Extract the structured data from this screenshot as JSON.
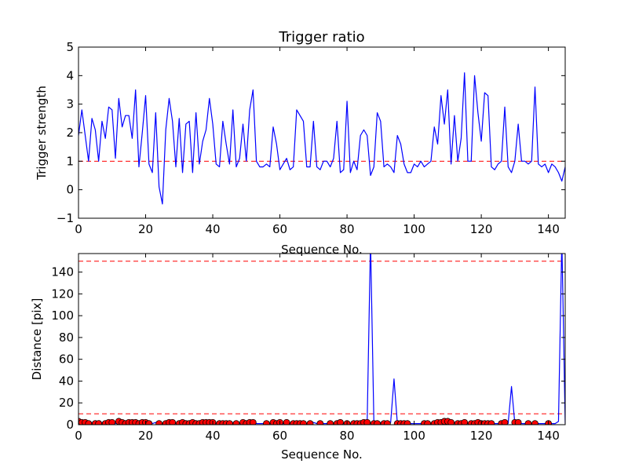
{
  "figure": {
    "title": "Trigger ratio"
  },
  "chart_data": [
    {
      "type": "line",
      "title": "Trigger ratio",
      "xlabel": "Sequence No.",
      "ylabel": "Trigger strength",
      "xlim": [
        0,
        145
      ],
      "ylim": [
        -1,
        5
      ],
      "xticks": [
        0,
        20,
        40,
        60,
        80,
        100,
        120,
        140
      ],
      "yticks": [
        -1,
        0,
        1,
        2,
        3,
        4,
        5
      ],
      "grid": false,
      "series": [
        {
          "color": "#0000ff",
          "x": [
            0,
            1,
            2,
            3,
            4,
            5,
            6,
            7,
            8,
            9,
            10,
            11,
            12,
            13,
            14,
            15,
            16,
            17,
            18,
            19,
            20,
            21,
            22,
            23,
            24,
            25,
            26,
            27,
            28,
            29,
            30,
            31,
            32,
            33,
            34,
            35,
            36,
            37,
            38,
            39,
            40,
            41,
            42,
            43,
            44,
            45,
            46,
            47,
            48,
            49,
            50,
            51,
            52,
            53,
            54,
            55,
            56,
            57,
            58,
            59,
            60,
            61,
            62,
            63,
            64,
            65,
            66,
            67,
            68,
            69,
            70,
            71,
            72,
            73,
            74,
            75,
            76,
            77,
            78,
            79,
            80,
            81,
            82,
            83,
            84,
            85,
            86,
            87,
            88,
            89,
            90,
            91,
            92,
            93,
            94,
            95,
            96,
            97,
            98,
            99,
            100,
            101,
            102,
            103,
            104,
            105,
            106,
            107,
            108,
            109,
            110,
            111,
            112,
            113,
            114,
            115,
            116,
            117,
            118,
            119,
            120,
            121,
            122,
            123,
            124,
            125,
            126,
            127,
            128,
            129,
            130,
            131,
            132,
            133,
            134,
            135,
            136,
            137,
            138,
            139,
            140,
            141,
            142,
            143,
            144,
            145
          ],
          "y": [
            1.9,
            2.8,
            1.9,
            1.0,
            2.5,
            2.1,
            1.0,
            2.4,
            1.8,
            2.9,
            2.8,
            1.1,
            3.2,
            2.2,
            2.6,
            2.6,
            1.8,
            3.5,
            0.8,
            2.0,
            3.3,
            0.9,
            0.6,
            2.7,
            0.1,
            -0.5,
            2.1,
            3.2,
            2.4,
            0.8,
            2.5,
            0.6,
            2.3,
            2.4,
            0.6,
            2.7,
            0.9,
            1.7,
            2.1,
            3.2,
            2.3,
            0.9,
            0.8,
            2.4,
            1.6,
            0.9,
            2.8,
            0.8,
            1.1,
            2.3,
            1.0,
            2.8,
            3.5,
            1.0,
            0.8,
            0.8,
            0.9,
            0.8,
            2.2,
            1.6,
            0.7,
            0.9,
            1.1,
            0.7,
            0.8,
            2.8,
            2.6,
            2.4,
            0.8,
            0.8,
            2.4,
            0.8,
            0.7,
            1.0,
            1.0,
            0.8,
            1.1,
            2.4,
            0.6,
            0.7,
            3.1,
            0.6,
            1.0,
            0.7,
            1.9,
            2.1,
            1.9,
            0.5,
            0.8,
            2.7,
            2.4,
            0.8,
            0.9,
            0.8,
            0.6,
            1.9,
            1.6,
            0.9,
            0.6,
            0.6,
            0.9,
            0.8,
            1.0,
            0.8,
            0.9,
            1.0,
            2.2,
            1.6,
            3.3,
            2.3,
            3.5,
            0.9,
            2.6,
            1.0,
            1.8,
            4.1,
            1.0,
            1.0,
            4.0,
            2.7,
            1.7,
            3.4,
            3.3,
            0.8,
            0.7,
            0.9,
            1.0,
            2.9,
            0.8,
            0.6,
            1.0,
            2.3,
            1.0,
            1.0,
            0.9,
            1.0,
            3.6,
            0.9,
            0.8,
            0.9,
            0.6,
            0.9,
            0.8,
            0.6,
            0.3,
            0.8
          ]
        }
      ],
      "reference_lines": [
        {
          "y": 1,
          "style": "dashed",
          "color": "#ff0000"
        }
      ]
    },
    {
      "type": "line",
      "title": "",
      "xlabel": "Sequence No.",
      "ylabel": "Distance [pix]",
      "xlim": [
        0,
        145
      ],
      "ylim": [
        0,
        157
      ],
      "xticks": [
        0,
        20,
        40,
        60,
        80,
        100,
        120,
        140
      ],
      "yticks": [
        0,
        20,
        40,
        60,
        80,
        100,
        120,
        140
      ],
      "grid": false,
      "series": [
        {
          "color": "#0000ff",
          "x": [
            0,
            1,
            2,
            3,
            4,
            5,
            6,
            7,
            8,
            9,
            10,
            11,
            12,
            13,
            14,
            15,
            16,
            17,
            18,
            19,
            20,
            21,
            22,
            23,
            24,
            25,
            26,
            27,
            28,
            29,
            30,
            31,
            32,
            33,
            34,
            35,
            36,
            37,
            38,
            39,
            40,
            41,
            42,
            43,
            44,
            45,
            46,
            47,
            48,
            49,
            50,
            51,
            52,
            53,
            54,
            55,
            56,
            57,
            58,
            59,
            60,
            61,
            62,
            63,
            64,
            65,
            66,
            67,
            68,
            69,
            70,
            71,
            72,
            73,
            74,
            75,
            76,
            77,
            78,
            79,
            80,
            81,
            82,
            83,
            84,
            85,
            86,
            87,
            88,
            89,
            90,
            91,
            92,
            93,
            94,
            95,
            96,
            97,
            98,
            99,
            100,
            101,
            102,
            103,
            104,
            105,
            106,
            107,
            108,
            109,
            110,
            111,
            112,
            113,
            114,
            115,
            116,
            117,
            118,
            119,
            120,
            121,
            122,
            123,
            124,
            125,
            126,
            127,
            128,
            129,
            130,
            131,
            132,
            133,
            134,
            135,
            136,
            137,
            138,
            139,
            140,
            141,
            142,
            143,
            144,
            145
          ],
          "y": [
            2,
            3,
            2,
            1,
            2,
            2,
            1,
            2,
            2,
            2,
            2,
            1,
            3,
            2,
            2,
            2,
            2,
            2,
            1,
            2,
            2,
            1,
            1,
            2,
            1,
            1,
            2,
            2,
            2,
            1,
            2,
            1,
            2,
            2,
            1,
            2,
            1,
            2,
            2,
            3,
            2,
            1,
            1,
            2,
            1,
            1,
            2,
            1,
            1,
            2,
            1,
            2,
            3,
            1,
            1,
            1,
            1,
            1,
            2,
            2,
            1,
            1,
            3,
            1,
            1,
            2,
            2,
            2,
            1,
            1,
            2,
            1,
            1,
            1,
            1,
            1,
            1,
            2,
            1,
            1,
            2,
            1,
            1,
            1,
            1,
            2,
            2,
            170,
            2,
            1,
            2,
            1,
            1,
            2,
            42,
            1,
            1,
            1,
            1,
            1,
            1,
            1,
            1,
            1,
            1,
            1,
            2,
            2,
            3,
            3,
            3,
            1,
            2,
            1,
            2,
            3,
            1,
            1,
            2,
            2,
            1,
            2,
            2,
            1,
            1,
            1,
            1,
            2,
            1,
            35,
            1,
            3,
            1,
            1,
            1,
            1,
            1,
            1,
            1,
            1,
            1,
            1,
            1,
            3,
            170,
            1
          ]
        }
      ],
      "markers": {
        "color": "#ff0000",
        "edge_color": "#000000",
        "x": [
          0,
          1,
          2,
          3,
          5,
          6,
          8,
          9,
          10,
          12,
          13,
          14,
          15,
          16,
          17,
          18,
          19,
          20,
          21,
          24,
          26,
          27,
          28,
          30,
          31,
          32,
          33,
          34,
          35,
          36,
          37,
          38,
          39,
          40,
          42,
          43,
          44,
          45,
          47,
          49,
          50,
          51,
          52,
          56,
          58,
          59,
          60,
          62,
          64,
          65,
          66,
          67,
          69,
          72,
          75,
          77,
          78,
          80,
          82,
          83,
          84,
          85,
          86,
          88,
          89,
          91,
          92,
          95,
          96,
          97,
          98,
          103,
          104,
          106,
          107,
          108,
          109,
          110,
          111,
          113,
          114,
          115,
          117,
          118,
          119,
          120,
          121,
          122,
          123,
          126,
          127,
          130,
          131,
          134,
          136,
          140
        ],
        "y": [
          3,
          2,
          2,
          1,
          1,
          1,
          1,
          2,
          2,
          3,
          2,
          1,
          2,
          2,
          2,
          1,
          2,
          2,
          1,
          1,
          1,
          2,
          2,
          1,
          2,
          1,
          1,
          2,
          1,
          1,
          2,
          2,
          2,
          2,
          1,
          1,
          1,
          1,
          1,
          2,
          1,
          2,
          2,
          1,
          2,
          1,
          2,
          2,
          1,
          1,
          1,
          1,
          1,
          1,
          1,
          1,
          2,
          1,
          1,
          1,
          1,
          2,
          2,
          1,
          1,
          1,
          1,
          1,
          1,
          1,
          1,
          1,
          1,
          1,
          2,
          2,
          3,
          3,
          2,
          1,
          1,
          2,
          1,
          1,
          2,
          1,
          1,
          1,
          1,
          1,
          2,
          2,
          2,
          1,
          1,
          1
        ]
      },
      "reference_lines": [
        {
          "y": 10,
          "style": "dashed",
          "color": "#ff0000"
        },
        {
          "y": 150,
          "style": "dashed",
          "color": "#ff0000"
        }
      ]
    }
  ]
}
